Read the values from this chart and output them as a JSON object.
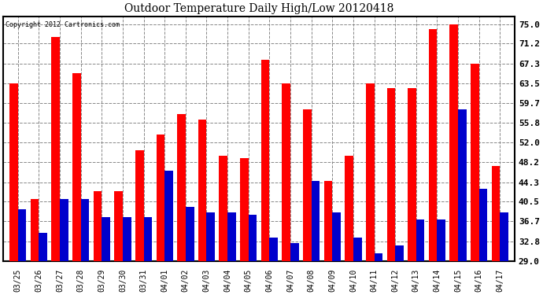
{
  "title": "Outdoor Temperature Daily High/Low 20120418",
  "copyright": "Copyright 2012 Cartronics.com",
  "dates": [
    "03/25",
    "03/26",
    "03/27",
    "03/28",
    "03/29",
    "03/30",
    "03/31",
    "04/01",
    "04/02",
    "04/03",
    "04/04",
    "04/05",
    "04/06",
    "04/07",
    "04/08",
    "04/09",
    "04/10",
    "04/11",
    "04/12",
    "04/13",
    "04/14",
    "04/15",
    "04/16",
    "04/17"
  ],
  "highs": [
    63.5,
    41.0,
    72.5,
    65.5,
    42.5,
    42.5,
    50.5,
    53.5,
    57.5,
    56.5,
    49.5,
    49.0,
    68.0,
    63.5,
    58.5,
    44.5,
    49.5,
    63.5,
    62.5,
    62.5,
    74.0,
    75.0,
    67.3,
    47.5
  ],
  "lows": [
    39.0,
    34.5,
    41.0,
    41.0,
    37.5,
    37.5,
    37.5,
    46.5,
    39.5,
    38.5,
    38.5,
    38.0,
    33.5,
    32.5,
    44.5,
    38.5,
    33.5,
    30.5,
    32.0,
    37.0,
    37.0,
    58.5,
    43.0,
    38.5
  ],
  "high_color": "#ff0000",
  "low_color": "#0000cc",
  "bg_color": "#ffffff",
  "grid_color": "#888888",
  "yticks": [
    29.0,
    32.8,
    36.7,
    40.5,
    44.3,
    48.2,
    52.0,
    55.8,
    59.7,
    63.5,
    67.3,
    71.2,
    75.0
  ],
  "ylim": [
    29.0,
    76.5
  ],
  "bar_width": 0.4
}
